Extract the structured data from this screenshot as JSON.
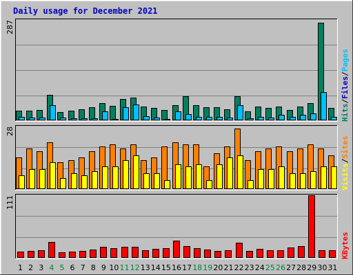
{
  "chart_data": {
    "type": "bar",
    "title": "Daily usage for December 2021",
    "categories": [
      "1",
      "2",
      "3",
      "4",
      "5",
      "6",
      "7",
      "8",
      "9",
      "10",
      "11",
      "12",
      "13",
      "14",
      "15",
      "16",
      "17",
      "18",
      "19",
      "20",
      "21",
      "22",
      "23",
      "24",
      "25",
      "26",
      "27",
      "28",
      "29",
      "30",
      "31"
    ],
    "weekend_days": [
      "4",
      "5",
      "11",
      "12",
      "18",
      "19",
      "25",
      "26"
    ],
    "colors": {
      "hits": "#008060",
      "files": "#00c0ff",
      "visits": "#ff8000",
      "sites": "#ffff00",
      "kbytes": "#ff0000",
      "weekday_label": "#000000",
      "weekend_label": "#008040",
      "title": "#0000c0",
      "plot_bg": "#c0c0c0",
      "gridline": "#808080"
    },
    "panels": [
      {
        "id": "hits_files",
        "max_label": "287",
        "ylim": [
          0,
          287
        ],
        "legend": [
          {
            "text": "Hits",
            "color": "#008060"
          },
          {
            "text": "/",
            "color": "#000000"
          },
          {
            "text": "Files",
            "color": "#0000c0"
          },
          {
            "text": "/",
            "color": "#000000"
          },
          {
            "text": "Pages",
            "color": "#00c0ff"
          }
        ],
        "series": [
          {
            "name": "Hits",
            "color": "#008060",
            "values": [
              27,
              28,
              30,
              72,
              24,
              27,
              32,
              38,
              50,
              42,
              60,
              65,
              40,
              36,
              30,
              44,
              68,
              44,
              38,
              38,
              31,
              68,
              25,
              40,
              36,
              40,
              30,
              39,
              50,
              280,
              36
            ]
          },
          {
            "name": "Files",
            "color": "#00c0ff",
            "values": [
              9,
              8,
              7,
              44,
              7,
              6,
              6,
              6,
              25,
              4,
              38,
              45,
              12,
              8,
              3,
              25,
              18,
              10,
              9,
              10,
              7,
              44,
              5,
              10,
              8,
              16,
              9,
              15,
              20,
              80,
              9
            ]
          }
        ]
      },
      {
        "id": "visits_sites",
        "max_label": "28",
        "ylim": [
          0,
          28
        ],
        "legend": [
          {
            "text": "Visits",
            "color": "#ffff00"
          },
          {
            "text": "/",
            "color": "#000000"
          },
          {
            "text": "Sites",
            "color": "#ff8000"
          }
        ],
        "series": [
          {
            "name": "Visits",
            "color": "#ff8000",
            "values": [
              14,
              18,
              17,
              21,
              12,
              13,
              14,
              17,
              19,
              20,
              18,
              20,
              13,
              14,
              19,
              21,
              20,
              20,
              10,
              16,
              19,
              27,
              13,
              17,
              18,
              19,
              17,
              18,
              20,
              18,
              15
            ]
          },
          {
            "name": "Sites",
            "color": "#ffff00",
            "values": [
              6,
              9,
              9,
              12,
              5,
              7,
              6,
              8,
              10,
              10,
              13,
              15,
              7,
              7,
              4,
              11,
              10,
              11,
              4,
              11,
              14,
              15,
              4,
              9,
              9,
              10,
              7,
              7,
              8,
              10,
              10
            ]
          }
        ]
      },
      {
        "id": "kbytes",
        "max_label": "111",
        "ylim": [
          0,
          111
        ],
        "legend": [
          {
            "text": "KBytes",
            "color": "#ff0000"
          }
        ],
        "series": [
          {
            "name": "KBytes",
            "color": "#ff0000",
            "values": [
              11,
              12,
              14,
              28,
              10,
              11,
              12,
              15,
              20,
              17,
              19,
              19,
              14,
              16,
              17,
              30,
              21,
              17,
              15,
              12,
              14,
              27,
              12,
              16,
              14,
              14,
              18,
              21,
              111,
              13,
              14
            ]
          }
        ]
      }
    ]
  }
}
